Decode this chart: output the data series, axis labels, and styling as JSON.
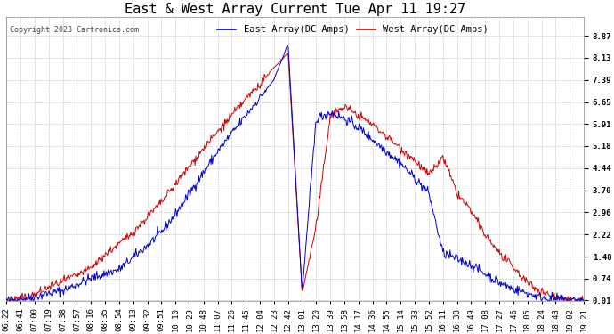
{
  "title": "East & West Array Current Tue Apr 11 19:27",
  "copyright": "Copyright 2023 Cartronics.com",
  "legend_east": "East Array(DC Amps)",
  "legend_west": "West Array(DC Amps)",
  "east_color": "#0000CC",
  "west_color": "#CC0000",
  "yticks": [
    0.01,
    0.74,
    1.48,
    2.22,
    2.96,
    3.7,
    4.44,
    5.18,
    5.91,
    6.65,
    7.39,
    8.13,
    8.87
  ],
  "ylim": [
    0.0,
    9.5
  ],
  "background_color": "#FFFFFF",
  "grid_color": "#BBBBBB",
  "title_fontsize": 11,
  "tick_fontsize": 6.5,
  "legend_fontsize": 7.5,
  "xtick_labels": [
    "06:22",
    "06:41",
    "07:00",
    "07:19",
    "07:38",
    "07:57",
    "08:16",
    "08:35",
    "08:54",
    "09:13",
    "09:32",
    "09:51",
    "10:10",
    "10:29",
    "10:48",
    "11:07",
    "11:26",
    "11:45",
    "12:04",
    "12:23",
    "12:42",
    "13:01",
    "13:20",
    "13:39",
    "13:58",
    "14:17",
    "14:36",
    "14:55",
    "15:14",
    "15:33",
    "15:52",
    "16:11",
    "16:30",
    "16:49",
    "17:08",
    "17:27",
    "17:46",
    "18:05",
    "18:24",
    "18:43",
    "19:02",
    "19:21"
  ],
  "east_data": [
    0.01,
    0.05,
    0.12,
    0.25,
    0.35,
    0.55,
    0.75,
    0.9,
    1.05,
    1.45,
    1.85,
    2.3,
    2.9,
    3.6,
    4.3,
    5.0,
    5.6,
    6.2,
    6.8,
    7.4,
    8.6,
    0.3,
    6.1,
    6.3,
    6.1,
    5.8,
    5.4,
    5.0,
    4.6,
    4.1,
    3.6,
    1.6,
    1.4,
    1.2,
    0.9,
    0.6,
    0.4,
    0.25,
    0.12,
    0.06,
    0.03,
    0.01
  ],
  "west_data": [
    0.01,
    0.08,
    0.2,
    0.45,
    0.65,
    0.85,
    1.1,
    1.55,
    1.9,
    2.3,
    2.8,
    3.3,
    3.9,
    4.5,
    5.1,
    5.65,
    6.2,
    6.75,
    7.25,
    7.8,
    8.3,
    0.25,
    2.5,
    6.2,
    6.5,
    6.2,
    5.9,
    5.5,
    5.1,
    4.7,
    4.2,
    4.8,
    3.6,
    3.0,
    2.2,
    1.6,
    1.1,
    0.6,
    0.3,
    0.12,
    0.05,
    0.01
  ]
}
